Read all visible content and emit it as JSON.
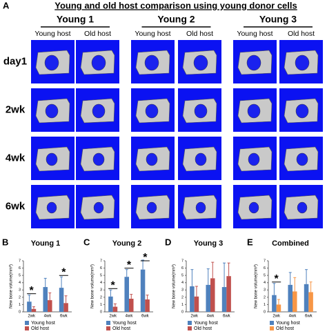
{
  "panel_a": {
    "label": "A",
    "title": "Young and old host comparison using young donor cells",
    "groups": [
      "Young 1",
      "Young 2",
      "Young 3"
    ],
    "columns": [
      "Young host",
      "Old host",
      "Young host",
      "Old host",
      "Young host",
      "Old host"
    ],
    "rows": [
      "day1",
      "2wk",
      "4wk",
      "6wk"
    ]
  },
  "chart_data": [
    {
      "type": "bar",
      "panel": "B",
      "title": "Young 1",
      "y_label": "New bone volume(mm³)",
      "categories": [
        "2wk",
        "4wk",
        "6wk"
      ],
      "ylim": [
        0,
        7
      ],
      "yticks": [
        0,
        1,
        2,
        3,
        4,
        5,
        6,
        7
      ],
      "series": [
        {
          "name": "Young host",
          "color": "#4f81bd",
          "values": [
            1.4,
            3.4,
            3.3
          ],
          "errors": [
            0.9,
            1.2,
            1.5
          ]
        },
        {
          "name": "Old host",
          "color": "#c0504d",
          "values": [
            0.4,
            1.6,
            1.2
          ],
          "errors": [
            0.3,
            1.0,
            1.0
          ]
        }
      ],
      "annotations": [
        {
          "text": "*",
          "category": "2wk"
        },
        {
          "text": "*",
          "category": "6wk"
        }
      ]
    },
    {
      "type": "bar",
      "panel": "C",
      "title": "Young 2",
      "y_label": "New bone volume(mm³)",
      "categories": [
        "2wk",
        "4wk",
        "6wk"
      ],
      "ylim": [
        0,
        7
      ],
      "yticks": [
        0,
        1,
        2,
        3,
        4,
        5,
        6,
        7
      ],
      "series": [
        {
          "name": "Young host",
          "color": "#4f81bd",
          "values": [
            2.1,
            4.8,
            5.8
          ],
          "errors": [
            0.9,
            1.0,
            1.3
          ]
        },
        {
          "name": "Old host",
          "color": "#c0504d",
          "values": [
            0.7,
            1.8,
            1.7
          ],
          "errors": [
            0.4,
            0.6,
            0.6
          ]
        }
      ],
      "annotations": [
        {
          "text": "*",
          "category": "2wk"
        },
        {
          "text": "*",
          "category": "4wk"
        },
        {
          "text": "*",
          "category": "6wk"
        }
      ]
    },
    {
      "type": "bar",
      "panel": "D",
      "title": "Young 3",
      "y_label": "New bone volume(mm³)",
      "categories": [
        "2wk",
        "4wk",
        "6wk"
      ],
      "ylim": [
        0,
        7
      ],
      "yticks": [
        0,
        1,
        2,
        3,
        4,
        5,
        6,
        7
      ],
      "series": [
        {
          "name": "Young host",
          "color": "#4f81bd",
          "values": [
            3.5,
            3.7,
            3.4
          ],
          "errors": [
            2.3,
            2.2,
            3.3
          ]
        },
        {
          "name": "Old host",
          "color": "#c0504d",
          "values": [
            2.1,
            4.6,
            4.9
          ],
          "errors": [
            1.4,
            2.2,
            1.8
          ]
        }
      ],
      "annotations": []
    },
    {
      "type": "bar",
      "panel": "E",
      "title": "Combined",
      "y_label": "New bone volume(mm³)",
      "categories": [
        "2wk",
        "4wk",
        "6wk"
      ],
      "ylim": [
        0,
        7
      ],
      "yticks": [
        0,
        1,
        2,
        3,
        4,
        5,
        6,
        7
      ],
      "series": [
        {
          "name": "Young host",
          "color": "#4f81bd",
          "values": [
            2.3,
            3.7,
            3.8
          ],
          "errors": [
            1.6,
            1.7,
            2.0
          ]
        },
        {
          "name": "Old host",
          "color": "#f79646",
          "values": [
            1.0,
            2.8,
            2.7
          ],
          "errors": [
            0.7,
            1.9,
            1.4
          ]
        }
      ],
      "annotations": [
        {
          "text": "*",
          "category": "2wk"
        }
      ]
    }
  ]
}
